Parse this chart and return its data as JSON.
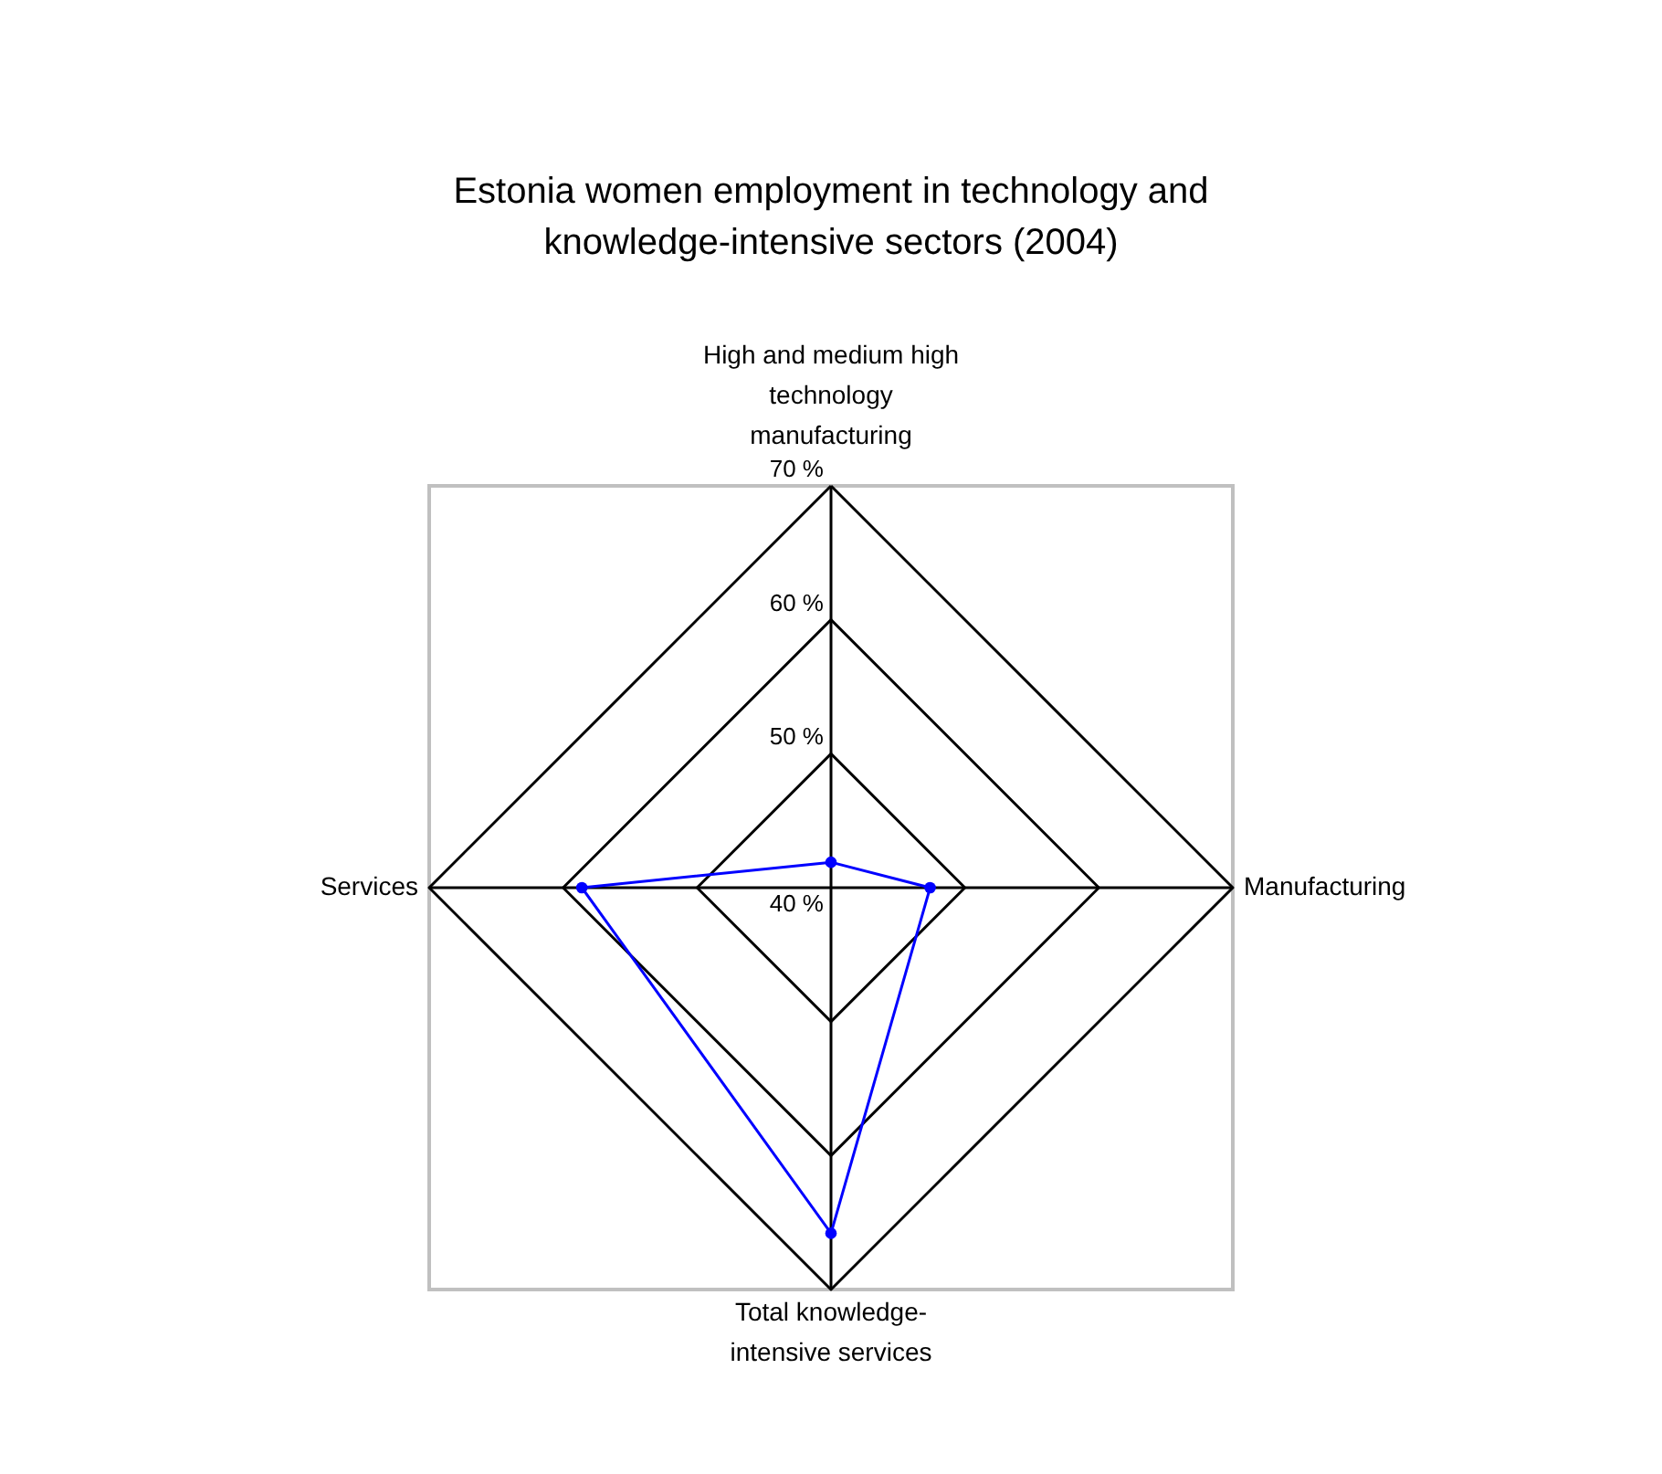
{
  "chart_data": {
    "type": "radar",
    "title": "Estonia women employment in technology and knowledge-intensive sectors (2004)",
    "categories": [
      "High and medium high technology manufacturing",
      "Manufacturing",
      "Total knowledge-intensive services",
      "Services"
    ],
    "series": [
      {
        "color": "#0000ff",
        "values": [
          41.9,
          47.4,
          65.8,
          58.6
        ]
      }
    ],
    "ylim": [
      40,
      70
    ],
    "yticks": [
      {
        "value": 40,
        "label": "40 %"
      },
      {
        "value": 50,
        "label": "50 %"
      },
      {
        "value": 60,
        "label": "60 %"
      },
      {
        "value": 70,
        "label": "70 %"
      }
    ],
    "grid": true,
    "marker": "circle",
    "line_style": "solid"
  }
}
